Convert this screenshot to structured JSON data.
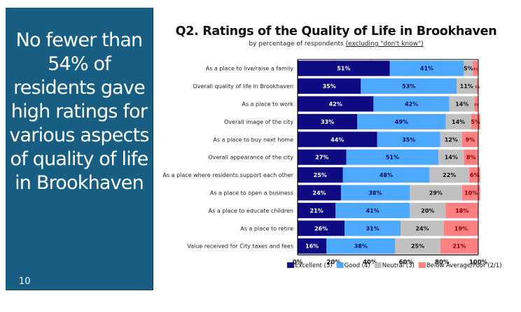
{
  "slide": {
    "headline": "No fewer than 54% of residents gave high ratings for various aspects of quality of life in Brookhaven",
    "page_number": "10"
  },
  "chart_data": {
    "type": "bar",
    "orientation": "horizontal",
    "stacked": true,
    "title": "Q2. Ratings of the Quality of Life in Brookhaven",
    "subtitle_prefix": "by percentage of respondents ",
    "subtitle_underlined": "(excluding \"don't know\")",
    "xlabel": "",
    "ylabel": "",
    "xlim": [
      0,
      100
    ],
    "x_ticks": [
      "0%",
      "20%",
      "40%",
      "60%",
      "80%",
      "100%"
    ],
    "grid": true,
    "legend_position": "bottom",
    "categories": [
      "As a place to live/raise a family",
      "Overall quality of life in Brookhaven",
      "As a place to work",
      "Overall image of the city",
      "As a place to buy next home",
      "Overall appearance of the city",
      "As a place where residents support each other",
      "As a place to open a business",
      "As a place to educate children",
      "As a place to retire",
      "Value received for City taxes and fees"
    ],
    "series": [
      {
        "name": "Excellent (5)",
        "color": "#0d0a82",
        "label_color": "#ffffff",
        "values": [
          51,
          35,
          42,
          33,
          44,
          27,
          25,
          24,
          21,
          26,
          16
        ]
      },
      {
        "name": "Good (4)",
        "color": "#4da8ff",
        "label_color": "#0d0a55",
        "values": [
          41,
          53,
          42,
          49,
          35,
          51,
          48,
          38,
          41,
          31,
          38
        ]
      },
      {
        "name": "Neutral (3)",
        "color": "#c0c0c0",
        "label_color": "#111111",
        "values": [
          5,
          11,
          14,
          14,
          12,
          14,
          22,
          29,
          20,
          24,
          25
        ]
      },
      {
        "name": "Below Average/Poor (2/1)",
        "color": "#ff8080",
        "label_color": "#8b0000",
        "values": [
          3,
          1,
          2,
          5,
          9,
          8,
          6,
          10,
          18,
          19,
          21
        ]
      }
    ]
  }
}
